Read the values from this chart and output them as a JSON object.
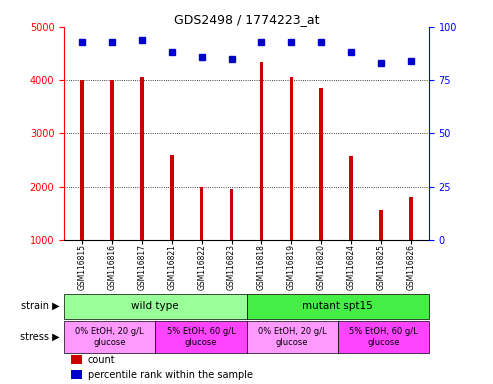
{
  "title": "GDS2498 / 1774223_at",
  "samples": [
    "GSM116815",
    "GSM116816",
    "GSM116817",
    "GSM116821",
    "GSM116822",
    "GSM116823",
    "GSM116818",
    "GSM116819",
    "GSM116820",
    "GSM116824",
    "GSM116825",
    "GSM116826"
  ],
  "counts": [
    4000,
    4000,
    4050,
    2600,
    2000,
    1950,
    4350,
    4050,
    3850,
    2570,
    1560,
    1800
  ],
  "percentile": [
    93,
    93,
    94,
    88,
    86,
    85,
    93,
    93,
    93,
    88,
    83,
    84
  ],
  "ylim_left": [
    1000,
    5000
  ],
  "ylim_right": [
    0,
    100
  ],
  "yticks_left": [
    1000,
    2000,
    3000,
    4000,
    5000
  ],
  "yticks_right": [
    0,
    25,
    50,
    75,
    100
  ],
  "bar_color": "#cc0000",
  "dot_color": "#0000cc",
  "strain_labels": [
    {
      "text": "wild type",
      "start": 0,
      "end": 6,
      "color": "#99ff99"
    },
    {
      "text": "mutant spt15",
      "start": 6,
      "end": 12,
      "color": "#44ee44"
    }
  ],
  "stress_labels": [
    {
      "text": "0% EtOH, 20 g/L\nglucose",
      "start": 0,
      "end": 3,
      "color": "#ff99ff"
    },
    {
      "text": "5% EtOH, 60 g/L\nglucose",
      "start": 3,
      "end": 6,
      "color": "#ff44ff"
    },
    {
      "text": "0% EtOH, 20 g/L\nglucose",
      "start": 6,
      "end": 9,
      "color": "#ff99ff"
    },
    {
      "text": "5% EtOH, 60 g/L\nglucose",
      "start": 9,
      "end": 12,
      "color": "#ff44ff"
    }
  ],
  "legend_items": [
    {
      "color": "#cc0000",
      "label": "count"
    },
    {
      "color": "#0000cc",
      "label": "percentile rank within the sample"
    }
  ],
  "xticklabel_bg": "#cccccc",
  "bar_width": 0.12
}
